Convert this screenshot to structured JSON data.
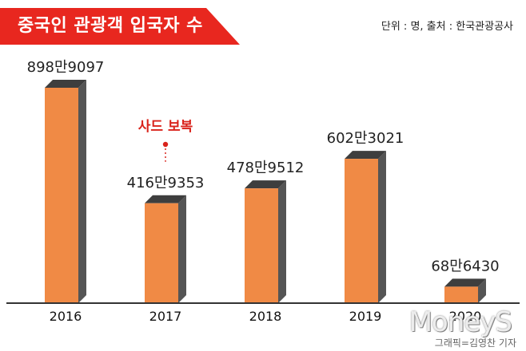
{
  "header": {
    "title": "중국인 관광객 입국자 수",
    "source": "단위 : 명, 출처 : 한국관광공사"
  },
  "footer": {
    "watermark": "MoneyS",
    "credit": "그래픽=김영찬 기자"
  },
  "colors": {
    "bar_front": "#f08a45",
    "bar_side": "#555555",
    "accent": "#e8271f",
    "annotation": "#d9231b"
  },
  "chart_data": {
    "type": "bar",
    "categories": [
      "2016",
      "2017",
      "2018",
      "2019",
      "2020"
    ],
    "values": [
      8989097,
      4169353,
      4789512,
      6023021,
      686430
    ],
    "data_labels": [
      "898만9097",
      "416만9353",
      "478만9512",
      "602만3021",
      "68만6430"
    ],
    "ylim": [
      0,
      9000000
    ],
    "annotations": [
      {
        "category": "2017",
        "text": "사드 보복"
      }
    ],
    "grid": false,
    "legend": "none"
  }
}
